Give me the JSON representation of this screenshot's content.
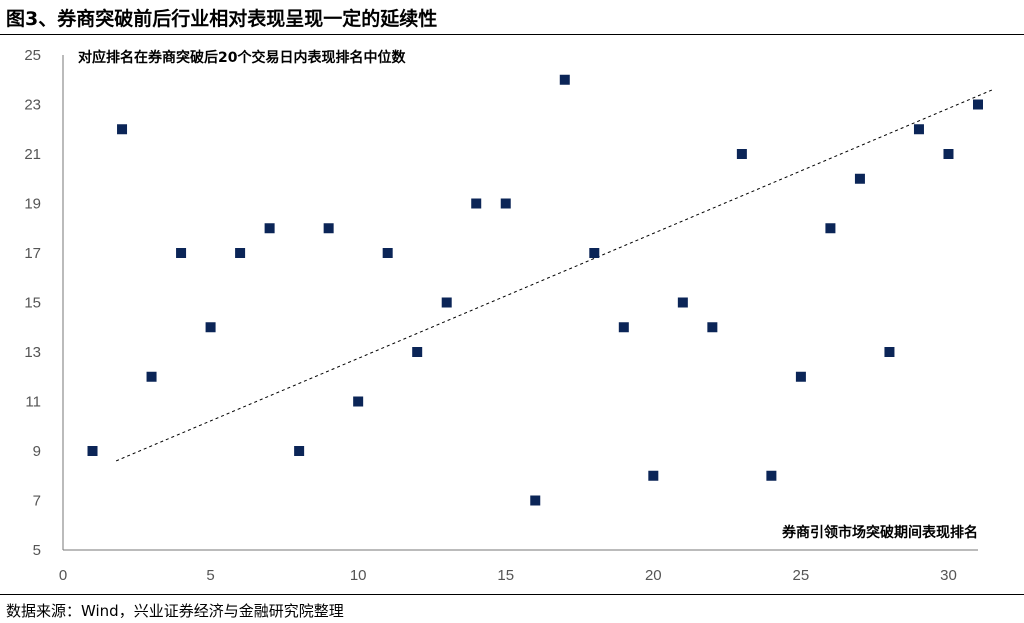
{
  "title": "图3、券商突破前后行业相对表现呈现一定的延续性",
  "source": "数据来源：Wind，兴业证券经济与金融研究院整理",
  "colors": {
    "marker": "#0b2557",
    "axis": "#777777",
    "trend": "#000000"
  },
  "chart_data": {
    "type": "scatter",
    "ylabel_annotation": "对应排名在券商突破后20个交易日内表现排名中位数",
    "xlabel_annotation": "券商引领市场突破期间表现排名",
    "xlim": [
      0,
      31
    ],
    "ylim": [
      5,
      25
    ],
    "xticks": [
      0,
      5,
      10,
      15,
      20,
      25,
      30
    ],
    "yticks": [
      5,
      7,
      9,
      11,
      13,
      15,
      17,
      19,
      21,
      23,
      25
    ],
    "grid": false,
    "trendline": {
      "style": "dashed",
      "x": [
        1.8,
        31.5
      ],
      "y": [
        8.6,
        23.6
      ]
    },
    "points": [
      {
        "x": 1,
        "y": 9
      },
      {
        "x": 2,
        "y": 22
      },
      {
        "x": 3,
        "y": 12
      },
      {
        "x": 4,
        "y": 17
      },
      {
        "x": 5,
        "y": 14
      },
      {
        "x": 6,
        "y": 17
      },
      {
        "x": 7,
        "y": 18
      },
      {
        "x": 8,
        "y": 9
      },
      {
        "x": 9,
        "y": 18
      },
      {
        "x": 10,
        "y": 11
      },
      {
        "x": 11,
        "y": 17
      },
      {
        "x": 12,
        "y": 13
      },
      {
        "x": 13,
        "y": 15
      },
      {
        "x": 14,
        "y": 19
      },
      {
        "x": 15,
        "y": 19
      },
      {
        "x": 16,
        "y": 7
      },
      {
        "x": 17,
        "y": 24
      },
      {
        "x": 18,
        "y": 17
      },
      {
        "x": 19,
        "y": 14
      },
      {
        "x": 20,
        "y": 8
      },
      {
        "x": 21,
        "y": 15
      },
      {
        "x": 22,
        "y": 14
      },
      {
        "x": 23,
        "y": 21
      },
      {
        "x": 24,
        "y": 8
      },
      {
        "x": 25,
        "y": 12
      },
      {
        "x": 26,
        "y": 18
      },
      {
        "x": 27,
        "y": 20
      },
      {
        "x": 28,
        "y": 13
      },
      {
        "x": 29,
        "y": 22
      },
      {
        "x": 30,
        "y": 21
      },
      {
        "x": 31,
        "y": 23
      }
    ]
  }
}
